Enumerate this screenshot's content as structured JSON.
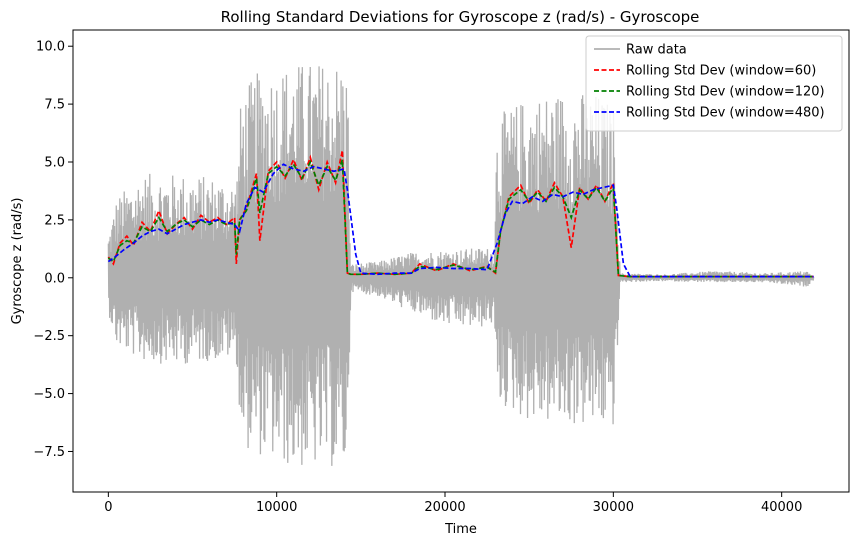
{
  "chart_data": {
    "type": "line",
    "title": "Rolling Standard Deviations for Gyroscope z (rad/s) - Gyroscope",
    "xlabel": "Time",
    "ylabel": "Gyroscope z (rad/s)",
    "xlim": [
      -2100,
      44000
    ],
    "ylim": [
      -9.25,
      10.7
    ],
    "xticks": [
      {
        "value": 0,
        "label": "0"
      },
      {
        "value": 10000,
        "label": "10000"
      },
      {
        "value": 20000,
        "label": "20000"
      },
      {
        "value": 30000,
        "label": "30000"
      },
      {
        "value": 40000,
        "label": "40000"
      }
    ],
    "yticks": [
      {
        "value": -7.5,
        "label": "−7.5"
      },
      {
        "value": -5.0,
        "label": "−5.0"
      },
      {
        "value": -2.5,
        "label": "−2.5"
      },
      {
        "value": 0.0,
        "label": "0.0"
      },
      {
        "value": 2.5,
        "label": "2.5"
      },
      {
        "value": 5.0,
        "label": "5.0"
      },
      {
        "value": 7.5,
        "label": "7.5"
      },
      {
        "value": 10.0,
        "label": "10.0"
      }
    ],
    "grid": false,
    "legend_position": "top-right",
    "raw_envelope": {
      "name": "Raw data",
      "color": "#b0b0b0",
      "x": [
        0,
        500,
        2000,
        4000,
        6000,
        7600,
        7900,
        9000,
        11000,
        13000,
        14200,
        14400,
        16000,
        18000,
        20000,
        22000,
        22900,
        23100,
        25000,
        27000,
        29000,
        30100,
        30400,
        33000,
        36000,
        39000,
        41500,
        41900
      ],
      "high": [
        1.9,
        3.5,
        4.5,
        4.5,
        4.4,
        4.2,
        8.0,
        9.0,
        9.3,
        9.4,
        9.5,
        0.6,
        0.7,
        1.1,
        1.2,
        1.3,
        1.3,
        7.0,
        7.9,
        8.1,
        8.0,
        7.4,
        0.2,
        0.15,
        0.3,
        0.2,
        0.3,
        0.05
      ],
      "low": [
        -1.5,
        -3.0,
        -3.6,
        -3.8,
        -3.6,
        -3.5,
        -7.3,
        -7.7,
        -8.3,
        -8.2,
        -8.4,
        -0.6,
        -0.8,
        -1.5,
        -2.1,
        -2.2,
        -2.0,
        -5.5,
        -6.2,
        -6.4,
        -6.5,
        -6.5,
        -0.2,
        -0.15,
        -0.2,
        -0.2,
        -0.4,
        -0.1
      ]
    },
    "series": [
      {
        "name": "Rolling Std Dev (window=60)",
        "color": "#ff0000",
        "x": [
          0,
          300,
          700,
          1100,
          1500,
          2000,
          2500,
          3000,
          3500,
          4000,
          4500,
          5000,
          5500,
          6000,
          6500,
          7000,
          7500,
          7600,
          7800,
          8200,
          8800,
          9000,
          9500,
          10000,
          10500,
          11000,
          11500,
          12000,
          12500,
          13000,
          13500,
          13900,
          14200,
          14400,
          15000,
          16000,
          17000,
          18000,
          18500,
          19500,
          20500,
          21500,
          22500,
          23000,
          23300,
          23800,
          24500,
          25000,
          25500,
          26000,
          26500,
          27000,
          27500,
          28000,
          28500,
          29000,
          29500,
          30000,
          30300,
          31000,
          33000,
          36000,
          39000,
          41900
        ],
        "values": [
          0.9,
          0.6,
          1.5,
          1.8,
          1.4,
          2.4,
          2.0,
          2.9,
          1.9,
          2.3,
          2.6,
          2.1,
          2.7,
          2.4,
          2.6,
          2.3,
          2.6,
          0.6,
          2.5,
          3.0,
          4.5,
          1.6,
          4.6,
          5.0,
          4.3,
          5.1,
          4.2,
          5.2,
          3.8,
          5.0,
          4.1,
          5.5,
          0.2,
          0.15,
          0.15,
          0.2,
          0.15,
          0.2,
          0.6,
          0.3,
          0.6,
          0.3,
          0.5,
          0.2,
          2.0,
          3.5,
          4.0,
          3.2,
          3.8,
          3.3,
          4.1,
          3.5,
          1.3,
          3.9,
          3.4,
          4.0,
          3.3,
          4.1,
          0.1,
          0.05,
          0.05,
          0.05,
          0.05,
          0.05
        ]
      },
      {
        "name": "Rolling Std Dev (window=120)",
        "color": "#008000",
        "x": [
          0,
          300,
          700,
          1100,
          1500,
          2000,
          2500,
          3000,
          3500,
          4000,
          4500,
          5000,
          5500,
          6000,
          6500,
          7000,
          7500,
          7600,
          7800,
          8200,
          8800,
          9000,
          9500,
          10000,
          10500,
          11000,
          11500,
          12000,
          12500,
          13000,
          13500,
          13900,
          14200,
          14400,
          15000,
          16000,
          17000,
          18000,
          18500,
          19500,
          20500,
          21500,
          22500,
          23000,
          23300,
          23800,
          24500,
          25000,
          25500,
          26000,
          26500,
          27000,
          27500,
          28000,
          28500,
          29000,
          29500,
          30000,
          30300,
          31000,
          33000,
          36000,
          39000,
          41900
        ],
        "values": [
          0.85,
          0.7,
          1.4,
          1.6,
          1.5,
          2.2,
          2.0,
          2.6,
          2.0,
          2.3,
          2.5,
          2.2,
          2.5,
          2.3,
          2.5,
          2.3,
          2.4,
          1.0,
          2.5,
          2.9,
          4.3,
          2.8,
          4.5,
          4.8,
          4.4,
          4.9,
          4.3,
          5.0,
          4.0,
          4.8,
          4.2,
          5.1,
          0.2,
          0.15,
          0.15,
          0.2,
          0.15,
          0.2,
          0.5,
          0.35,
          0.55,
          0.35,
          0.45,
          0.25,
          2.0,
          3.4,
          3.8,
          3.3,
          3.7,
          3.3,
          3.9,
          3.5,
          2.6,
          3.8,
          3.4,
          3.9,
          3.3,
          3.9,
          0.1,
          0.05,
          0.05,
          0.05,
          0.05,
          0.05
        ]
      },
      {
        "name": "Rolling Std Dev (window=480)",
        "color": "#0000ff",
        "x": [
          0,
          400,
          900,
          1500,
          2000,
          2500,
          3000,
          3500,
          4000,
          4500,
          5000,
          5500,
          6000,
          6500,
          7000,
          7500,
          7800,
          8200,
          8700,
          9200,
          9800,
          10400,
          11000,
          11600,
          12200,
          12800,
          13400,
          14000,
          14200,
          14700,
          15000,
          16000,
          17000,
          18000,
          18500,
          19500,
          20500,
          21500,
          22500,
          23100,
          23600,
          24000,
          24600,
          25200,
          25800,
          26400,
          27000,
          27600,
          28200,
          28800,
          29400,
          30000,
          30200,
          30600,
          31000,
          33000,
          36000,
          39000,
          41900
        ],
        "values": [
          0.7,
          0.9,
          1.2,
          1.5,
          1.8,
          2.0,
          2.1,
          1.9,
          2.1,
          2.3,
          2.4,
          2.5,
          2.4,
          2.5,
          2.4,
          2.3,
          2.0,
          3.2,
          3.9,
          3.7,
          4.5,
          4.9,
          4.7,
          4.6,
          4.8,
          4.7,
          4.6,
          4.7,
          3.8,
          1.0,
          0.2,
          0.15,
          0.2,
          0.2,
          0.4,
          0.45,
          0.4,
          0.4,
          0.35,
          1.5,
          2.8,
          3.3,
          3.2,
          3.5,
          3.3,
          3.6,
          3.5,
          3.7,
          3.6,
          3.8,
          3.9,
          4.0,
          3.0,
          0.6,
          0.05,
          0.05,
          0.05,
          0.05,
          0.05
        ]
      }
    ],
    "legend": [
      {
        "label": "Raw data",
        "color": "#b0b0b0",
        "style": "solid"
      },
      {
        "label": "Rolling Std Dev (window=60)",
        "color": "#ff0000",
        "style": "dashed"
      },
      {
        "label": "Rolling Std Dev (window=120)",
        "color": "#008000",
        "style": "dashed"
      },
      {
        "label": "Rolling Std Dev (window=480)",
        "color": "#0000ff",
        "style": "dashed"
      }
    ]
  }
}
